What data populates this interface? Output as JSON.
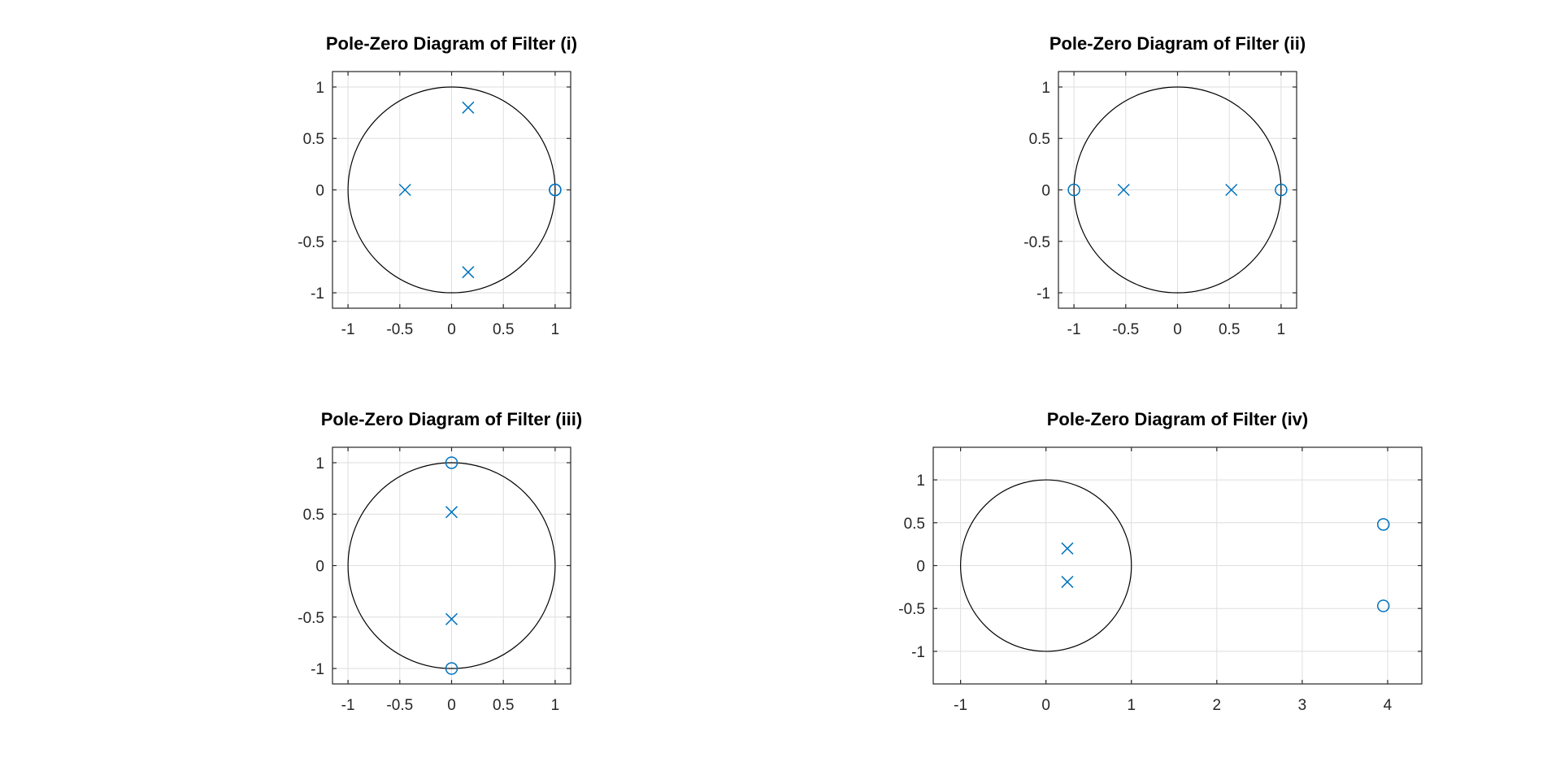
{
  "colors": {
    "marker": "#0072bd",
    "unit_circle": "#000000",
    "grid": "#dedede",
    "axes": "#262626"
  },
  "chart_data": [
    {
      "type": "scatter",
      "title": "Pole-Zero Diagram of Filter (i)",
      "xlim": [
        -1.15,
        1.15
      ],
      "ylim": [
        -1.15,
        1.15
      ],
      "xticks": [
        -1,
        -0.5,
        0,
        0.5,
        1
      ],
      "yticks": [
        -1,
        -0.5,
        0,
        0.5,
        1
      ],
      "xtick_labels": [
        "-1",
        "-0.5",
        "0",
        "0.5",
        "1"
      ],
      "ytick_labels": [
        "-1",
        "-0.5",
        "0",
        "0.5",
        "1"
      ],
      "grid": true,
      "unit_circle": true,
      "poles": [
        [
          0.16,
          0.8
        ],
        [
          0.16,
          -0.8
        ],
        [
          -0.45,
          0
        ]
      ],
      "zeros": [
        [
          1,
          0
        ],
        [
          1,
          0
        ]
      ]
    },
    {
      "type": "scatter",
      "title": "Pole-Zero Diagram of Filter (ii)",
      "xlim": [
        -1.15,
        1.15
      ],
      "ylim": [
        -1.15,
        1.15
      ],
      "xticks": [
        -1,
        -0.5,
        0,
        0.5,
        1
      ],
      "yticks": [
        -1,
        -0.5,
        0,
        0.5,
        1
      ],
      "xtick_labels": [
        "-1",
        "-0.5",
        "0",
        "0.5",
        "1"
      ],
      "ytick_labels": [
        "-1",
        "-0.5",
        "0",
        "0.5",
        "1"
      ],
      "grid": true,
      "unit_circle": true,
      "poles": [
        [
          -0.52,
          0
        ],
        [
          0.52,
          0
        ]
      ],
      "zeros": [
        [
          -1,
          0
        ],
        [
          1,
          0
        ]
      ]
    },
    {
      "type": "scatter",
      "title": "Pole-Zero Diagram of Filter (iii)",
      "xlim": [
        -1.15,
        1.15
      ],
      "ylim": [
        -1.15,
        1.15
      ],
      "xticks": [
        -1,
        -0.5,
        0,
        0.5,
        1
      ],
      "yticks": [
        -1,
        -0.5,
        0,
        0.5,
        1
      ],
      "xtick_labels": [
        "-1",
        "-0.5",
        "0",
        "0.5",
        "1"
      ],
      "ytick_labels": [
        "-1",
        "-0.5",
        "0",
        "0.5",
        "1"
      ],
      "grid": true,
      "unit_circle": true,
      "poles": [
        [
          0,
          0.52
        ],
        [
          0,
          -0.52
        ]
      ],
      "zeros": [
        [
          0,
          1
        ],
        [
          0,
          -1
        ]
      ]
    },
    {
      "type": "scatter",
      "title": "Pole-Zero Diagram of Filter (iv)",
      "xlim": [
        -1.32,
        4.4
      ],
      "ylim": [
        -1.38,
        1.38
      ],
      "xticks": [
        -1,
        0,
        1,
        2,
        3,
        4
      ],
      "yticks": [
        -1,
        -0.5,
        0,
        0.5,
        1
      ],
      "xtick_labels": [
        "-1",
        "0",
        "1",
        "2",
        "3",
        "4"
      ],
      "ytick_labels": [
        "-1",
        "-0.5",
        "0",
        "0.5",
        "1"
      ],
      "grid": true,
      "unit_circle": true,
      "poles": [
        [
          0.25,
          0.2
        ],
        [
          0.25,
          -0.19
        ]
      ],
      "zeros": [
        [
          3.95,
          0.48
        ],
        [
          3.95,
          -0.47
        ]
      ]
    }
  ]
}
